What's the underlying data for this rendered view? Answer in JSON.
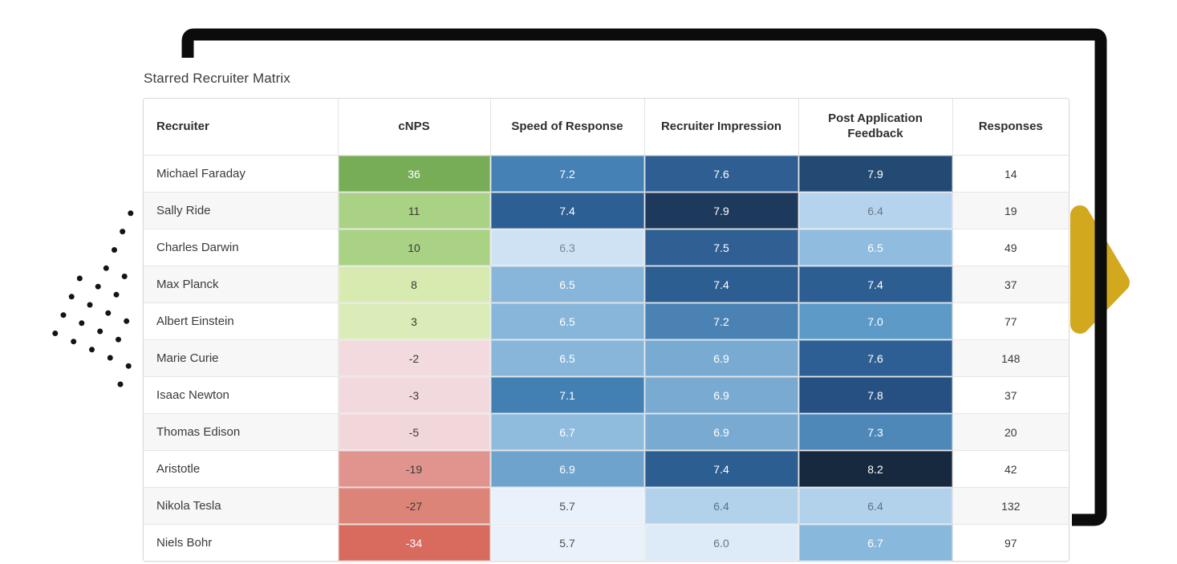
{
  "title": "Starred Recruiter Matrix",
  "table": {
    "columns": [
      {
        "label": "Recruiter"
      },
      {
        "label": "cNPS"
      },
      {
        "label": "Speed of Response"
      },
      {
        "label": "Recruiter Impression"
      },
      {
        "label": "Post Application Feedback"
      },
      {
        "label": "Responses"
      }
    ],
    "rows": [
      {
        "recruiter": "Michael Faraday",
        "cnps": {
          "v": "36",
          "bg": "#77ad57",
          "fg": "#ffffff"
        },
        "speed": {
          "v": "7.2",
          "bg": "#4581b4",
          "fg": "#ffffff"
        },
        "impression": {
          "v": "7.6",
          "bg": "#2e5e92",
          "fg": "#ffffff"
        },
        "feedback": {
          "v": "7.9",
          "bg": "#234a72",
          "fg": "#ffffff"
        },
        "responses": "14"
      },
      {
        "recruiter": "Sally Ride",
        "cnps": {
          "v": "11",
          "bg": "#a9d284",
          "fg": "#3a3a3a"
        },
        "speed": {
          "v": "7.4",
          "bg": "#2c5f94",
          "fg": "#ffffff"
        },
        "impression": {
          "v": "7.9",
          "bg": "#1d3a5c",
          "fg": "#ffffff"
        },
        "feedback": {
          "v": "6.4",
          "bg": "#b5d3ed",
          "fg": "#68798a"
        },
        "responses": "19"
      },
      {
        "recruiter": "Charles Darwin",
        "cnps": {
          "v": "10",
          "bg": "#a9d284",
          "fg": "#3a3a3a"
        },
        "speed": {
          "v": "6.3",
          "bg": "#cfe2f3",
          "fg": "#76879a"
        },
        "impression": {
          "v": "7.5",
          "bg": "#306093",
          "fg": "#ffffff"
        },
        "feedback": {
          "v": "6.5",
          "bg": "#8fbcdf",
          "fg": "#ffffff"
        },
        "responses": "49"
      },
      {
        "recruiter": "Max Planck",
        "cnps": {
          "v": "8",
          "bg": "#d7eab0",
          "fg": "#3a3a3a"
        },
        "speed": {
          "v": "6.5",
          "bg": "#87b6da",
          "fg": "#ffffff"
        },
        "impression": {
          "v": "7.4",
          "bg": "#2d5e92",
          "fg": "#ffffff"
        },
        "feedback": {
          "v": "7.4",
          "bg": "#2d5e92",
          "fg": "#ffffff"
        },
        "responses": "37"
      },
      {
        "recruiter": "Albert Einstein",
        "cnps": {
          "v": "3",
          "bg": "#daecb7",
          "fg": "#3a3a3a"
        },
        "speed": {
          "v": "6.5",
          "bg": "#87b6da",
          "fg": "#ffffff"
        },
        "impression": {
          "v": "7.2",
          "bg": "#4a82b4",
          "fg": "#ffffff"
        },
        "feedback": {
          "v": "7.0",
          "bg": "#5e9ac7",
          "fg": "#ffffff"
        },
        "responses": "77"
      },
      {
        "recruiter": "Marie Curie",
        "cnps": {
          "v": "-2",
          "bg": "#f2dade",
          "fg": "#3a3a3a"
        },
        "speed": {
          "v": "6.5",
          "bg": "#87b6da",
          "fg": "#ffffff"
        },
        "impression": {
          "v": "6.9",
          "bg": "#79abd2",
          "fg": "#ffffff"
        },
        "feedback": {
          "v": "7.6",
          "bg": "#2e5f94",
          "fg": "#ffffff"
        },
        "responses": "148"
      },
      {
        "recruiter": "Isaac Newton",
        "cnps": {
          "v": "-3",
          "bg": "#f2d9dd",
          "fg": "#3a3a3a"
        },
        "speed": {
          "v": "7.1",
          "bg": "#4280b3",
          "fg": "#ffffff"
        },
        "impression": {
          "v": "6.9",
          "bg": "#79abd2",
          "fg": "#ffffff"
        },
        "feedback": {
          "v": "7.8",
          "bg": "#265081",
          "fg": "#ffffff"
        },
        "responses": "37"
      },
      {
        "recruiter": "Thomas Edison",
        "cnps": {
          "v": "-5",
          "bg": "#f1d7da",
          "fg": "#3a3a3a"
        },
        "speed": {
          "v": "6.7",
          "bg": "#8fbcdd",
          "fg": "#ffffff"
        },
        "impression": {
          "v": "6.9",
          "bg": "#79abd2",
          "fg": "#ffffff"
        },
        "feedback": {
          "v": "7.3",
          "bg": "#4d88b8",
          "fg": "#ffffff"
        },
        "responses": "20"
      },
      {
        "recruiter": "Aristotle",
        "cnps": {
          "v": "-19",
          "bg": "#e0948d",
          "fg": "#3a3a3a"
        },
        "speed": {
          "v": "6.9",
          "bg": "#6ea3cd",
          "fg": "#ffffff"
        },
        "impression": {
          "v": "7.4",
          "bg": "#2d5e92",
          "fg": "#ffffff"
        },
        "feedback": {
          "v": "8.2",
          "bg": "#17293e",
          "fg": "#ffffff"
        },
        "responses": "42"
      },
      {
        "recruiter": "Nikola Tesla",
        "cnps": {
          "v": "-27",
          "bg": "#dd8478",
          "fg": "#3a3a3a"
        },
        "speed": {
          "v": "5.7",
          "bg": "#e9f1fa",
          "fg": "#454f59"
        },
        "impression": {
          "v": "6.4",
          "bg": "#b2d2ec",
          "fg": "#5f7182"
        },
        "feedback": {
          "v": "6.4",
          "bg": "#b2d2ec",
          "fg": "#5f7182"
        },
        "responses": "132"
      },
      {
        "recruiter": "Niels Bohr",
        "cnps": {
          "v": "-34",
          "bg": "#d96a5e",
          "fg": "#ffffff"
        },
        "speed": {
          "v": "5.7",
          "bg": "#e9f1fa",
          "fg": "#454f59"
        },
        "impression": {
          "v": "6.0",
          "bg": "#ddeaf8",
          "fg": "#63748a"
        },
        "feedback": {
          "v": "6.7",
          "bg": "#88b8dc",
          "fg": "#ffffff"
        },
        "responses": "97"
      }
    ]
  },
  "chart_data": {
    "type": "heatmap",
    "title": "Starred Recruiter Matrix",
    "columns": [
      "cNPS",
      "Speed of Response",
      "Recruiter Impression",
      "Post Application Feedback",
      "Responses"
    ],
    "rows": [
      "Michael Faraday",
      "Sally Ride",
      "Charles Darwin",
      "Max Planck",
      "Albert Einstein",
      "Marie Curie",
      "Isaac Newton",
      "Thomas Edison",
      "Aristotle",
      "Nikola Tesla",
      "Niels Bohr"
    ],
    "values": [
      [
        36,
        7.2,
        7.6,
        7.9,
        14
      ],
      [
        11,
        7.4,
        7.9,
        6.4,
        19
      ],
      [
        10,
        6.3,
        7.5,
        6.5,
        49
      ],
      [
        8,
        6.5,
        7.4,
        7.4,
        37
      ],
      [
        3,
        6.5,
        7.2,
        7.0,
        77
      ],
      [
        -2,
        6.5,
        6.9,
        7.6,
        148
      ],
      [
        -3,
        7.1,
        6.9,
        7.8,
        37
      ],
      [
        -5,
        6.7,
        6.9,
        7.3,
        20
      ],
      [
        -19,
        6.9,
        7.4,
        8.2,
        42
      ],
      [
        -27,
        5.7,
        6.4,
        6.4,
        132
      ],
      [
        -34,
        5.7,
        6.0,
        6.7,
        97
      ]
    ],
    "legend_position": "none",
    "colormap_notes": "cNPS: green (positive) to red (negative); score columns: light-to-dark blue; Responses uncolored"
  },
  "decorations": {
    "frame_color": "#0c0c0c",
    "accent_yellow": "#d2a81e",
    "dots_color": "#141414"
  }
}
